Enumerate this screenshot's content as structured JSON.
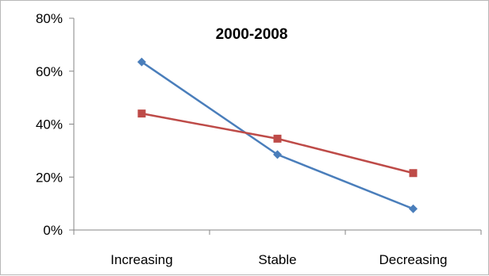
{
  "chart_data": {
    "type": "line",
    "title": "2000-2008",
    "categories": [
      "Increasing",
      "Stable",
      "Decreasing"
    ],
    "ylim": [
      0,
      0.8
    ],
    "yticks": [
      "0%",
      "20%",
      "40%",
      "60%",
      "80%"
    ],
    "grid": false,
    "legend": "none",
    "series": [
      {
        "values": [
          0.635,
          0.285,
          0.08
        ],
        "color": "#4A7EBB",
        "marker": "diamond"
      },
      {
        "values": [
          0.44,
          0.345,
          0.215
        ],
        "color": "#BE4B48",
        "marker": "square"
      }
    ]
  }
}
